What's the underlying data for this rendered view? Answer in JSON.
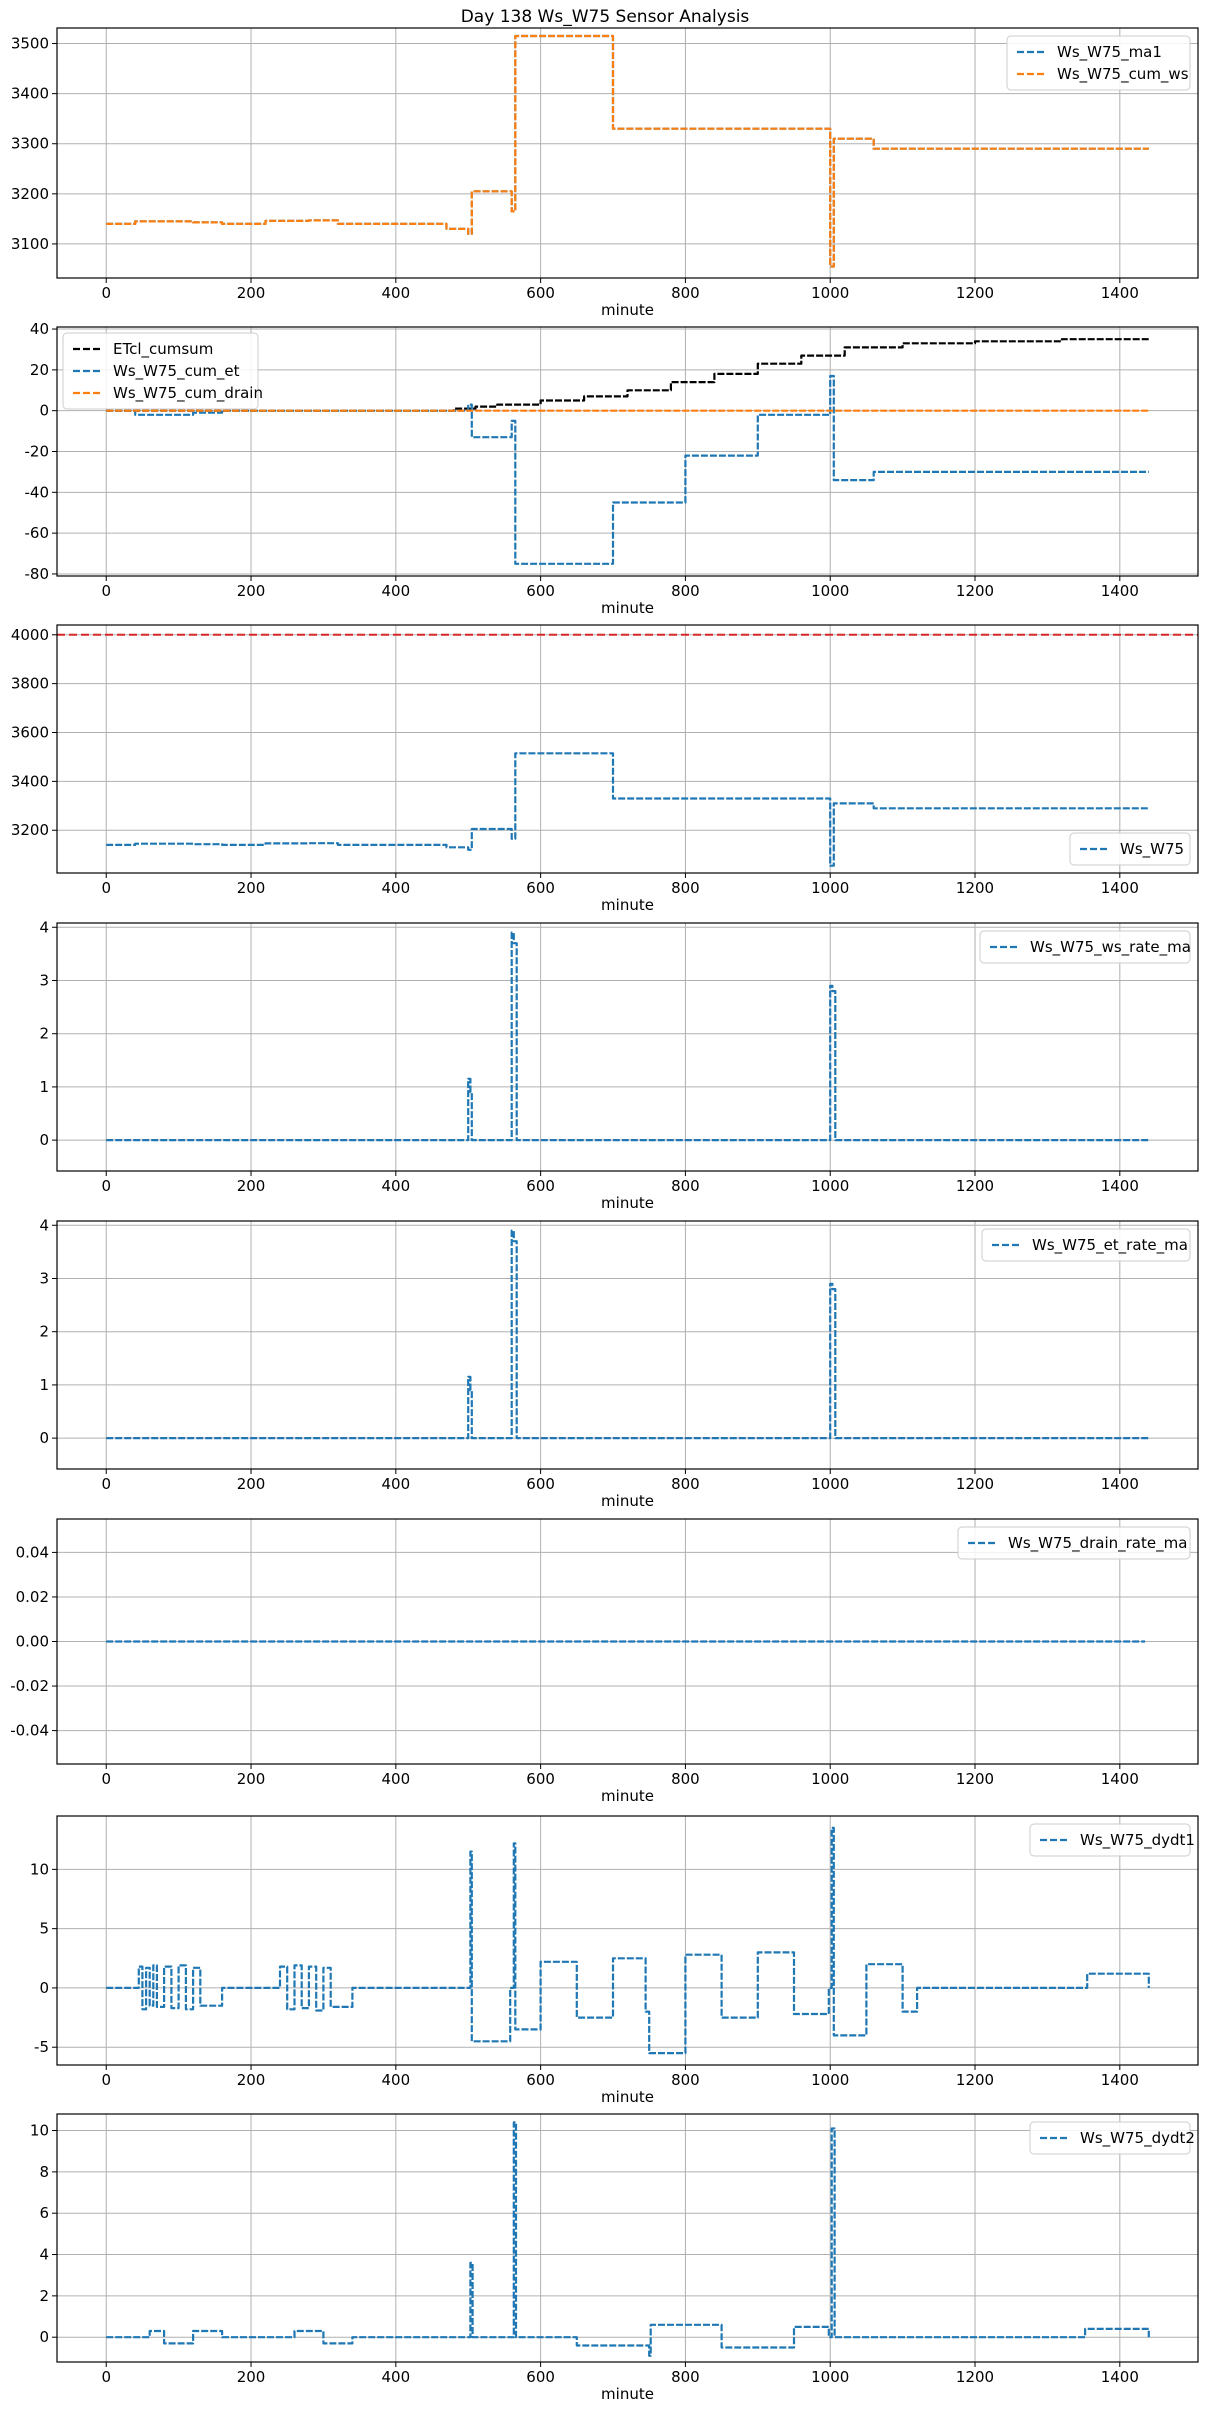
{
  "figure": {
    "title": "Day 138 Ws_W75 Sensor Analysis"
  },
  "colors": {
    "blue": "#1f77b4",
    "orange": "#ff7f0e",
    "black": "#000000",
    "red": "#d62728",
    "grid": "#b0b0b0"
  },
  "chart_data": [
    {
      "type": "line",
      "title": "",
      "xlabel": "minute",
      "ylabel": "",
      "xlim": [
        -68,
        1508
      ],
      "ylim": [
        3032,
        3531
      ],
      "xticks": [
        0,
        200,
        400,
        600,
        800,
        1000,
        1200,
        1400
      ],
      "xtick_labels": [
        "0",
        "200",
        "400",
        "600",
        "800",
        "1000",
        "1200",
        "1400"
      ],
      "yticks": [
        3100,
        3200,
        3300,
        3400,
        3500
      ],
      "ytick_labels": [
        "3100",
        "3200",
        "3300",
        "3400",
        "3500"
      ],
      "legend_position": "top-right",
      "series": [
        {
          "name": "Ws_W75_ma1",
          "color": "#1f77b4",
          "dashed": true,
          "x": [
            0,
            40,
            120,
            160,
            180,
            220,
            280,
            320,
            470,
            500,
            505,
            560,
            565,
            700,
            1000,
            1005,
            1060,
            1440
          ],
          "y": [
            3140,
            3145,
            3143,
            3140,
            3140,
            3146,
            3147,
            3140,
            3130,
            3120,
            3205,
            3165,
            3515,
            3330,
            3055,
            3310,
            3290,
            3290
          ]
        },
        {
          "name": "Ws_W75_cum_ws",
          "color": "#ff7f0e",
          "dashed": true,
          "x": [
            0,
            40,
            120,
            160,
            180,
            220,
            280,
            320,
            470,
            500,
            505,
            560,
            565,
            700,
            1000,
            1005,
            1060,
            1440
          ],
          "y": [
            3140,
            3145,
            3143,
            3140,
            3140,
            3146,
            3147,
            3140,
            3130,
            3120,
            3205,
            3165,
            3515,
            3330,
            3055,
            3310,
            3290,
            3290
          ]
        }
      ]
    },
    {
      "type": "line",
      "title": "",
      "xlabel": "minute",
      "ylabel": "",
      "xlim": [
        -68,
        1508
      ],
      "ylim": [
        -81,
        41
      ],
      "xticks": [
        0,
        200,
        400,
        600,
        800,
        1000,
        1200,
        1400
      ],
      "xtick_labels": [
        "0",
        "200",
        "400",
        "600",
        "800",
        "1000",
        "1200",
        "1400"
      ],
      "yticks": [
        -80,
        -60,
        -40,
        -20,
        0,
        20,
        40
      ],
      "ytick_labels": [
        "-80",
        "-60",
        "-40",
        "-20",
        "0",
        "20",
        "40"
      ],
      "legend_position": "top-left",
      "series": [
        {
          "name": "ETcl_cumsum",
          "color": "#000000",
          "dashed": true,
          "x": [
            0,
            400,
            480,
            510,
            540,
            600,
            660,
            720,
            780,
            840,
            900,
            960,
            1020,
            1100,
            1200,
            1320,
            1440
          ],
          "y": [
            0,
            0,
            1,
            2,
            3,
            5,
            7,
            10,
            14,
            18,
            23,
            27,
            31,
            33,
            34,
            35,
            36
          ]
        },
        {
          "name": "Ws_W75_cum_et",
          "color": "#1f77b4",
          "dashed": true,
          "x": [
            0,
            40,
            120,
            160,
            500,
            505,
            560,
            565,
            700,
            800,
            900,
            1000,
            1005,
            1060,
            1440
          ],
          "y": [
            0,
            -2,
            -1,
            0,
            3,
            -13,
            -5,
            -75,
            -45,
            -22,
            -2,
            17,
            -34,
            -30,
            -30
          ]
        },
        {
          "name": "Ws_W75_cum_drain",
          "color": "#ff7f0e",
          "dashed": true,
          "x": [
            0,
            1440
          ],
          "y": [
            0,
            0
          ]
        }
      ]
    },
    {
      "type": "line",
      "title": "",
      "xlabel": "minute",
      "ylabel": "",
      "xlim": [
        -68,
        1508
      ],
      "ylim": [
        3025,
        4040
      ],
      "xticks": [
        0,
        200,
        400,
        600,
        800,
        1000,
        1200,
        1400
      ],
      "xtick_labels": [
        "0",
        "200",
        "400",
        "600",
        "800",
        "1000",
        "1200",
        "1400"
      ],
      "yticks": [
        3200,
        3400,
        3600,
        3800,
        4000
      ],
      "ytick_labels": [
        "3200",
        "3400",
        "3600",
        "3800",
        "4000"
      ],
      "reference_line": {
        "y": 4000,
        "color": "#d62728",
        "dashed": true
      },
      "legend_position": "bottom-right",
      "series": [
        {
          "name": "Ws_W75",
          "color": "#1f77b4",
          "dashed": true,
          "x": [
            0,
            40,
            120,
            160,
            180,
            220,
            280,
            320,
            470,
            500,
            505,
            560,
            565,
            700,
            1000,
            1005,
            1060,
            1440
          ],
          "y": [
            3140,
            3145,
            3143,
            3140,
            3140,
            3146,
            3147,
            3140,
            3130,
            3120,
            3205,
            3165,
            3515,
            3330,
            3055,
            3310,
            3290,
            3290
          ]
        }
      ]
    },
    {
      "type": "line",
      "title": "",
      "xlabel": "minute",
      "ylabel": "",
      "xlim": [
        -68,
        1508
      ],
      "ylim": [
        -0.58,
        4.08
      ],
      "xticks": [
        0,
        200,
        400,
        600,
        800,
        1000,
        1200,
        1400
      ],
      "xtick_labels": [
        "0",
        "200",
        "400",
        "600",
        "800",
        "1000",
        "1200",
        "1400"
      ],
      "yticks": [
        0,
        1,
        2,
        3,
        4
      ],
      "ytick_labels": [
        "0",
        "1",
        "2",
        "3",
        "4"
      ],
      "legend_position": "top-right",
      "series": [
        {
          "name": "Ws_W75_ws_rate_ma",
          "color": "#1f77b4",
          "dashed": true,
          "x": [
            0,
            490,
            500,
            503,
            505,
            555,
            560,
            563,
            567,
            995,
            1000,
            1003,
            1007,
            1440
          ],
          "y": [
            0,
            0,
            1.15,
            0.9,
            0,
            0,
            3.9,
            3.7,
            0,
            0,
            2.9,
            2.8,
            0,
            0
          ]
        }
      ]
    },
    {
      "type": "line",
      "title": "",
      "xlabel": "minute",
      "ylabel": "",
      "xlim": [
        -68,
        1508
      ],
      "ylim": [
        -0.58,
        4.08
      ],
      "xticks": [
        0,
        200,
        400,
        600,
        800,
        1000,
        1200,
        1400
      ],
      "xtick_labels": [
        "0",
        "200",
        "400",
        "600",
        "800",
        "1000",
        "1200",
        "1400"
      ],
      "yticks": [
        0,
        1,
        2,
        3,
        4
      ],
      "ytick_labels": [
        "0",
        "1",
        "2",
        "3",
        "4"
      ],
      "legend_position": "top-right",
      "series": [
        {
          "name": "Ws_W75_et_rate_ma",
          "color": "#1f77b4",
          "dashed": true,
          "x": [
            0,
            490,
            500,
            503,
            505,
            555,
            560,
            563,
            567,
            995,
            1000,
            1003,
            1007,
            1440
          ],
          "y": [
            0,
            0,
            1.15,
            0.9,
            0,
            0,
            3.9,
            3.7,
            0,
            0,
            2.9,
            2.8,
            0,
            0
          ]
        }
      ]
    },
    {
      "type": "line",
      "title": "",
      "xlabel": "minute",
      "ylabel": "",
      "xlim": [
        -68,
        1508
      ],
      "ylim": [
        -0.055,
        0.055
      ],
      "xticks": [
        0,
        200,
        400,
        600,
        800,
        1000,
        1200,
        1400
      ],
      "xtick_labels": [
        "0",
        "200",
        "400",
        "600",
        "800",
        "1000",
        "1200",
        "1400"
      ],
      "yticks": [
        -0.04,
        -0.02,
        0.0,
        0.02,
        0.04
      ],
      "ytick_labels": [
        "-0.04",
        "-0.02",
        "0.00",
        "0.02",
        "0.04"
      ],
      "legend_position": "top-right",
      "series": [
        {
          "name": "Ws_W75_drain_rate_ma",
          "color": "#1f77b4",
          "dashed": true,
          "x": [
            0,
            1435
          ],
          "y": [
            0,
            0
          ]
        }
      ]
    },
    {
      "type": "line",
      "title": "",
      "xlabel": "minute",
      "ylabel": "",
      "xlim": [
        -68,
        1508
      ],
      "ylim": [
        -6.5,
        14.5
      ],
      "xticks": [
        0,
        200,
        400,
        600,
        800,
        1000,
        1200,
        1400
      ],
      "xtick_labels": [
        "0",
        "200",
        "400",
        "600",
        "800",
        "1000",
        "1200",
        "1400"
      ],
      "yticks": [
        -5,
        0,
        5,
        10
      ],
      "ytick_labels": [
        "-5",
        "0",
        "5",
        "10"
      ],
      "legend_position": "top-right",
      "series": [
        {
          "name": "Ws_W75_dydt1",
          "color": "#1f77b4",
          "dashed": true,
          "x": [
            0,
            40,
            45,
            50,
            55,
            60,
            65,
            70,
            80,
            90,
            100,
            110,
            120,
            130,
            160,
            230,
            240,
            250,
            260,
            270,
            280,
            290,
            300,
            310,
            340,
            460,
            495,
            503,
            505,
            558,
            563,
            565,
            600,
            650,
            700,
            745,
            750,
            800,
            850,
            900,
            950,
            998,
            1002,
            1005,
            1050,
            1100,
            1120,
            1350,
            1355,
            1440
          ],
          "y": [
            0,
            0,
            1.8,
            -1.8,
            1.7,
            -1.5,
            1.9,
            -1.6,
            1.8,
            -1.7,
            1.9,
            -1.8,
            1.7,
            -1.5,
            0,
            0,
            1.8,
            -1.8,
            1.9,
            -1.7,
            1.8,
            -1.9,
            1.7,
            -1.6,
            0,
            0,
            0,
            11.5,
            -4.5,
            0,
            12.2,
            -3.5,
            2.2,
            -2.5,
            2.5,
            -2.0,
            -5.5,
            2.8,
            -2.5,
            3.0,
            -2.2,
            0,
            13.5,
            -4.0,
            2.0,
            -2.0,
            0,
            0,
            1.2,
            0
          ]
        }
      ]
    },
    {
      "type": "line",
      "title": "",
      "xlabel": "minute",
      "ylabel": "",
      "xlim": [
        -68,
        1508
      ],
      "ylim": [
        -1.2,
        10.8
      ],
      "xticks": [
        0,
        200,
        400,
        600,
        800,
        1000,
        1200,
        1400
      ],
      "xtick_labels": [
        "0",
        "200",
        "400",
        "600",
        "800",
        "1000",
        "1200",
        "1400"
      ],
      "yticks": [
        0,
        2,
        4,
        6,
        8,
        10
      ],
      "ytick_labels": [
        "0",
        "2",
        "4",
        "6",
        "8",
        "10"
      ],
      "legend_position": "top-right",
      "series": [
        {
          "name": "Ws_W75_dydt2",
          "color": "#1f77b4",
          "dashed": true,
          "x": [
            0,
            40,
            60,
            80,
            120,
            160,
            230,
            260,
            300,
            340,
            500,
            503,
            506,
            558,
            563,
            566,
            650,
            750,
            752,
            850,
            950,
            998,
            1002,
            1006,
            1100,
            1350,
            1352,
            1440
          ],
          "y": [
            0,
            0,
            0.3,
            -0.3,
            0.3,
            0,
            0,
            0.3,
            -0.3,
            0,
            0,
            3.6,
            0,
            0,
            10.4,
            0,
            -0.4,
            -0.9,
            0.6,
            -0.5,
            0.5,
            0,
            10.1,
            0,
            0,
            0,
            0.4,
            0
          ]
        }
      ]
    }
  ]
}
